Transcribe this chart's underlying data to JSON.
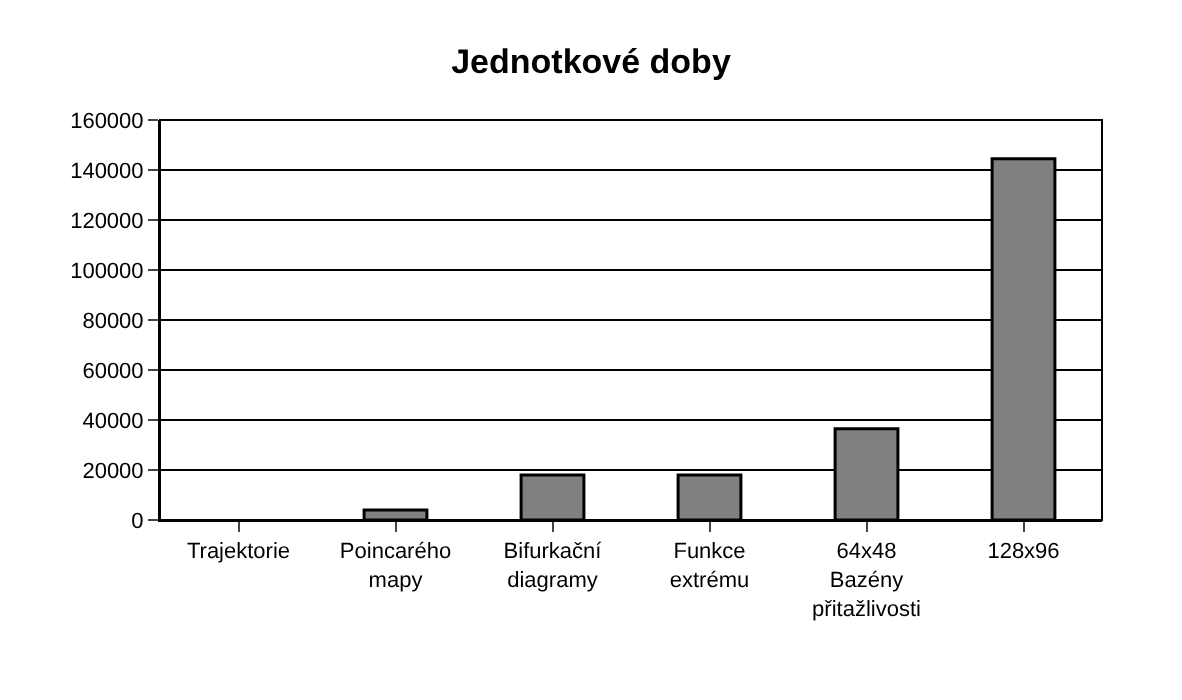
{
  "chart_data": {
    "type": "bar",
    "title": "Jednotkové doby",
    "categories": [
      "Trajektorie",
      "Poincarého\nmapy",
      "Bifurkační\ndiagramy",
      "Funkce\nextrému",
      "64x48\nBazény\npřitažlivosti",
      "128x96"
    ],
    "values": [
      0,
      4000,
      18000,
      18000,
      36500,
      144500
    ],
    "color": "#808080",
    "ylim": [
      0,
      160000
    ],
    "yticks": [
      0,
      20000,
      40000,
      60000,
      80000,
      100000,
      120000,
      140000,
      160000
    ],
    "grid": "y",
    "legend": false
  }
}
